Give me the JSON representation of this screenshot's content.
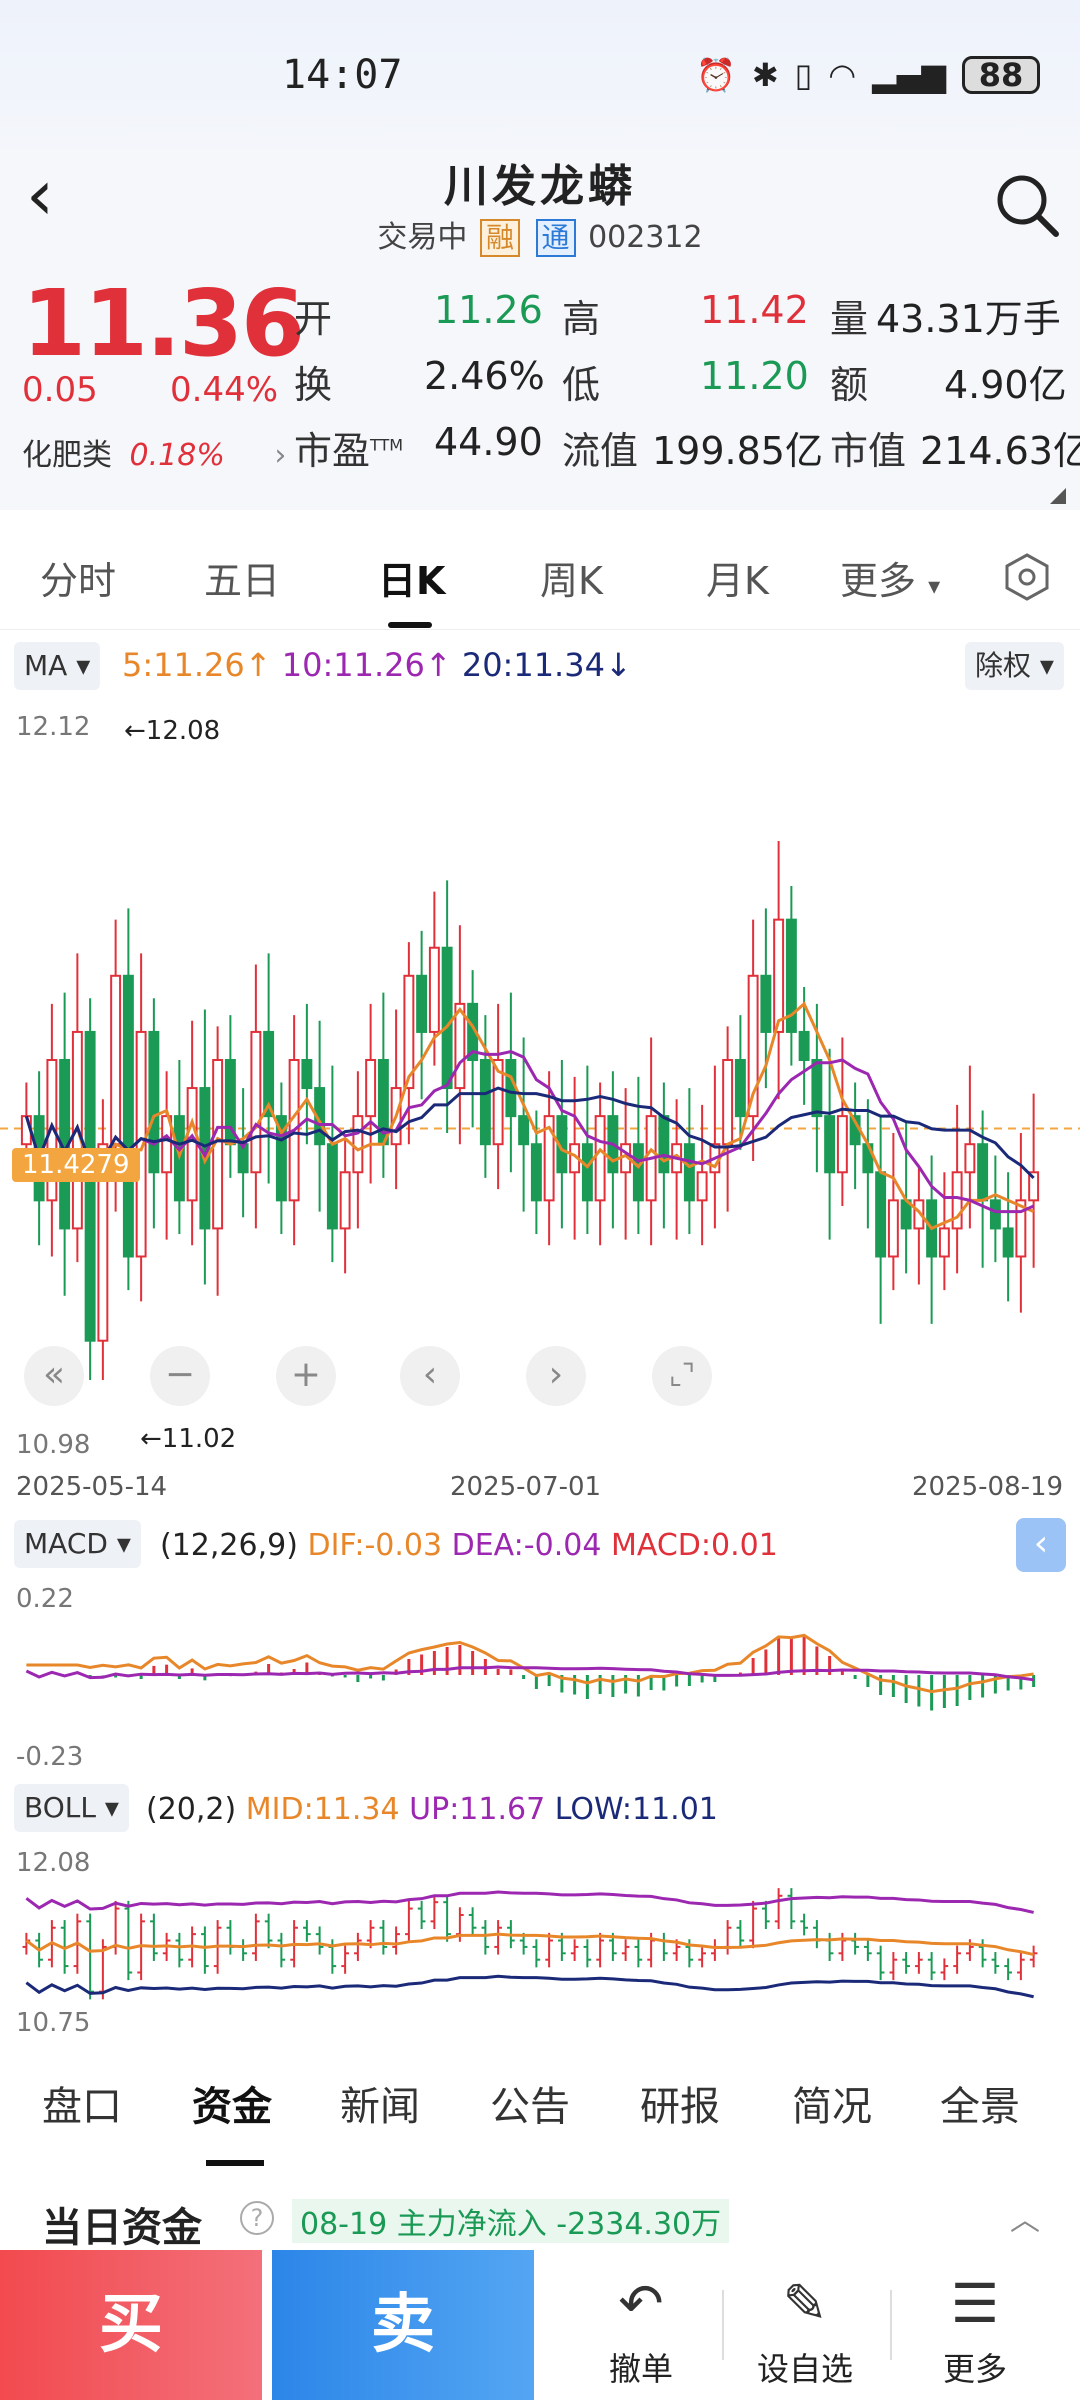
{
  "status": {
    "time": "14:07",
    "battery": "88"
  },
  "header": {
    "title": "川发龙蟒",
    "subtitle_status": "交易中",
    "badge_rong": "融",
    "badge_tong": "通",
    "code": "002312"
  },
  "quote": {
    "price": "11.36",
    "change": "0.05",
    "change_pct": "0.44%",
    "sector_name": "化肥类",
    "sector_pct": "0.18%",
    "open_label": "开",
    "open": "11.26",
    "high_label": "高",
    "high": "11.42",
    "vol_label": "量",
    "vol": "43.31万手",
    "turnover_label": "换",
    "turnover": "2.46%",
    "low_label": "低",
    "low": "11.20",
    "amount_label": "额",
    "amount": "4.90亿",
    "pe_label": "市盈",
    "pe_sup": "TTM",
    "pe": "44.90",
    "float_label": "流值",
    "float_cap": "199.85亿",
    "cap_label": "市值",
    "cap": "214.63亿"
  },
  "tabs": [
    "分时",
    "五日",
    "日K",
    "周K",
    "月K",
    "更多"
  ],
  "ma": {
    "selector": "MA",
    "ma5": "5:11.26↑",
    "ma10": "10:11.26↑",
    "ma20": "20:11.34↓",
    "adjust": "除权"
  },
  "axis": {
    "top": "12.12",
    "bottom": "10.98",
    "max_note": "←12.08",
    "min_note": "←11.02",
    "dates": [
      "2025-05-14",
      "2025-07-01",
      "2025-08-19"
    ],
    "price_tag": "11.4279"
  },
  "macd": {
    "selector": "MACD",
    "params": "(12,26,9)",
    "dif": "DIF:-0.03",
    "dea": "DEA:-0.04",
    "macd": "MACD:0.01",
    "top": "0.22",
    "bottom": "-0.23"
  },
  "boll": {
    "selector": "BOLL",
    "params": "(20,2)",
    "mid": "MID:11.34",
    "up": "UP:11.67",
    "low": "LOW:11.01",
    "top": "12.08",
    "bottom": "10.75"
  },
  "btabs": [
    "盘口",
    "资金",
    "新闻",
    "公告",
    "研报",
    "简况",
    "全景"
  ],
  "fund": {
    "title": "当日资金",
    "note": "08-19 主力净流入 -2334.30万"
  },
  "bottom": {
    "buy": "买",
    "sell": "卖",
    "cancel": "撤单",
    "watch": "设自选",
    "more": "更多"
  },
  "colors": {
    "up": "#e0303a",
    "down": "#1a9a55",
    "ma5": "#e8872a",
    "ma10": "#9c27b0",
    "ma20": "#1b2a78"
  },
  "chart_data": {
    "type": "candlestick",
    "x_range": [
      "2025-05-14",
      "2025-08-19"
    ],
    "ylim": [
      10.98,
      12.12
    ],
    "close": [
      11.45,
      11.3,
      11.55,
      11.25,
      11.6,
      11.05,
      11.4,
      11.7,
      11.2,
      11.6,
      11.35,
      11.45,
      11.3,
      11.5,
      11.25,
      11.55,
      11.4,
      11.35,
      11.6,
      11.45,
      11.3,
      11.55,
      11.5,
      11.4,
      11.25,
      11.35,
      11.45,
      11.55,
      11.4,
      11.5,
      11.7,
      11.6,
      11.75,
      11.5,
      11.65,
      11.55,
      11.4,
      11.55,
      11.45,
      11.4,
      11.3,
      11.45,
      11.35,
      11.4,
      11.3,
      11.45,
      11.35,
      11.4,
      11.3,
      11.45,
      11.35,
      11.4,
      11.3,
      11.35,
      11.4,
      11.55,
      11.45,
      11.7,
      11.6,
      11.8,
      11.6,
      11.55,
      11.45,
      11.35,
      11.45,
      11.4,
      11.35,
      11.2,
      11.3,
      11.25,
      11.3,
      11.2,
      11.25,
      11.35,
      11.4,
      11.3,
      11.25,
      11.2,
      11.3,
      11.35
    ]
  }
}
